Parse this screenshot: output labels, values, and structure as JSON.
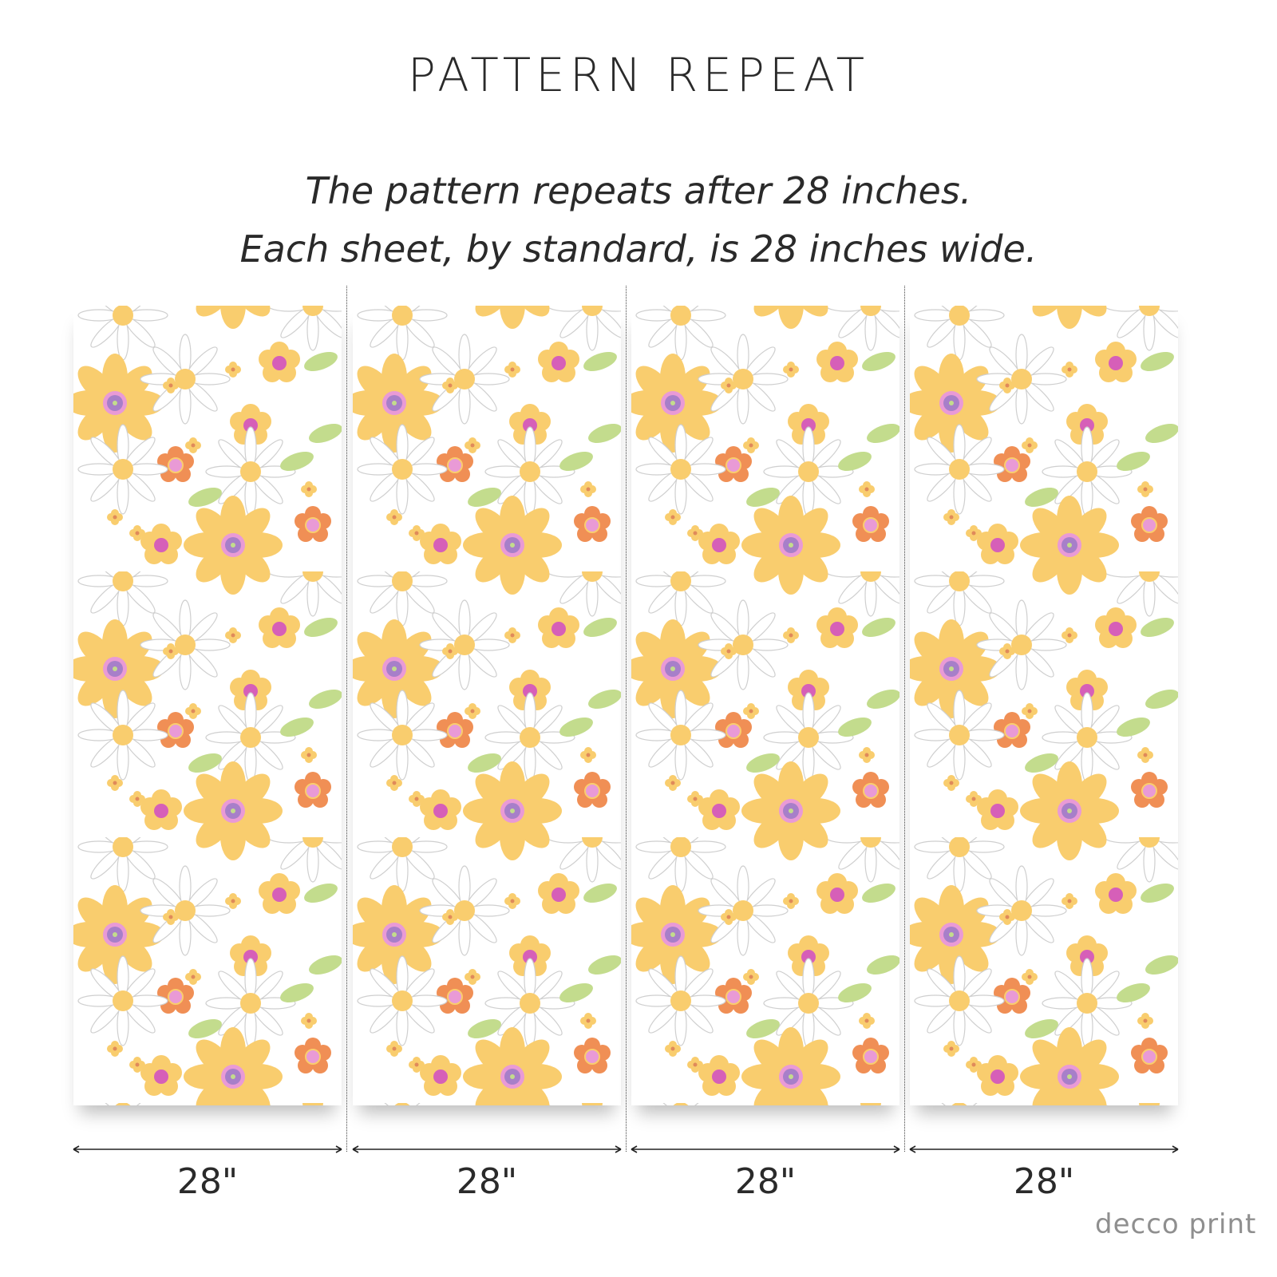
{
  "title": "PATTERN REPEAT",
  "subtitle_lines": [
    "The pattern repeats after 28 inches.",
    "Each sheet, by standard, is 28 inches wide."
  ],
  "sheets": [
    {
      "width_label": "28\""
    },
    {
      "width_label": "28\""
    },
    {
      "width_label": "28\""
    },
    {
      "width_label": "28\""
    }
  ],
  "logo": "decco print",
  "colors": {
    "yellow": "#f9cd6e",
    "orange": "#f08f55",
    "purple": "#a77fc9",
    "pink": "#e99ad6",
    "green": "#c3dc8d",
    "outline": "#cfcfcf"
  }
}
